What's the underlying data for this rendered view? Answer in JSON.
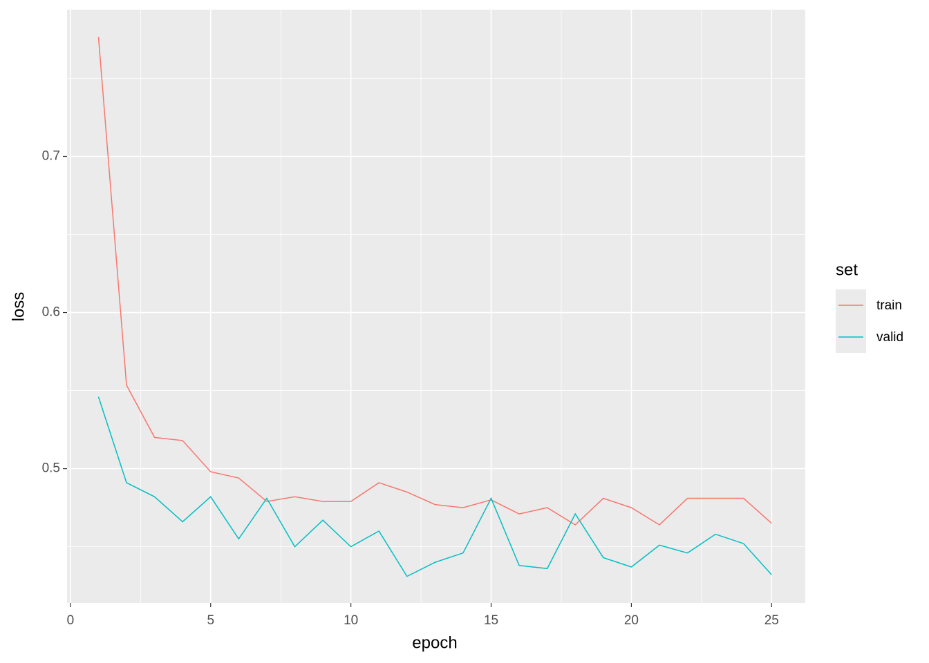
{
  "chart_data": {
    "type": "line",
    "x_label": "epoch",
    "y_label": "loss",
    "x": [
      1,
      2,
      3,
      4,
      5,
      6,
      7,
      8,
      9,
      10,
      11,
      12,
      13,
      14,
      15,
      16,
      17,
      18,
      19,
      20,
      21,
      22,
      23,
      24,
      25
    ],
    "series": [
      {
        "name": "train",
        "color": "#f8766d",
        "values": [
          0.7765,
          0.5535,
          0.52,
          0.518,
          0.498,
          0.494,
          0.479,
          0.482,
          0.479,
          0.479,
          0.491,
          0.485,
          0.477,
          0.475,
          0.48,
          0.471,
          0.475,
          0.464,
          0.481,
          0.475,
          0.464,
          0.481,
          0.481,
          0.481,
          0.465
        ]
      },
      {
        "name": "valid",
        "color": "#00bfc4",
        "values": [
          0.546,
          0.491,
          0.482,
          0.466,
          0.482,
          0.455,
          0.481,
          0.45,
          0.467,
          0.45,
          0.46,
          0.431,
          0.44,
          0.446,
          0.481,
          0.438,
          0.436,
          0.471,
          0.443,
          0.437,
          0.451,
          0.446,
          0.458,
          0.452,
          0.432
        ]
      }
    ],
    "legend_title": "set",
    "legend": "right",
    "xlim": [
      -0.12,
      26.2
    ],
    "xticks": [
      0,
      5,
      10,
      15,
      20,
      25
    ],
    "ylim": [
      0.414,
      0.794
    ],
    "yticks": [
      0.5,
      0.6,
      0.7
    ],
    "grid": true
  }
}
